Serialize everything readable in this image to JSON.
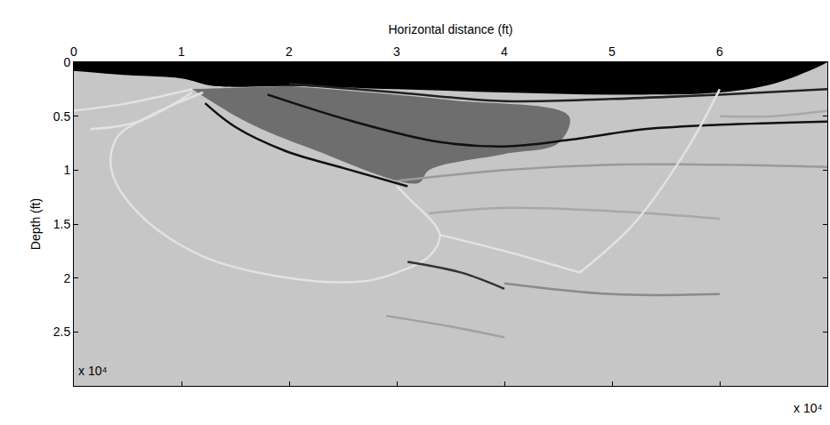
{
  "chart_data": {
    "type": "line",
    "x_label": "Horizontal distance (ft)",
    "y_label": "Depth (ft)",
    "x_exponent_label": "x 10⁴",
    "y_exponent_label": "x 10⁴",
    "xlim": [
      0,
      7.0
    ],
    "ylim": [
      0,
      3.0
    ],
    "xticks": [
      0,
      1,
      2,
      3,
      4,
      5,
      6
    ],
    "yticks": [
      0,
      0.5,
      1,
      1.5,
      2,
      2.5
    ],
    "grid": false,
    "series": [
      {
        "type": "polygon",
        "color": "#6e6e6e",
        "x": [
          1.1,
          1.6,
          2.2,
          3.2,
          3.3,
          4.0,
          4.5,
          4.6,
          3.5,
          2.0
        ],
        "values": [
          0.25,
          0.55,
          0.8,
          1.12,
          1.0,
          0.85,
          0.75,
          0.5,
          0.35,
          0.22
        ]
      },
      {
        "type": "area",
        "color": "#000000",
        "x": [
          0,
          0.5,
          1.0,
          1.3,
          2.0,
          3.0,
          4.0,
          5.0,
          6.0,
          6.5,
          6.9,
          7.0
        ],
        "values": [
          0.08,
          0.12,
          0.15,
          0.22,
          0.22,
          0.25,
          0.28,
          0.3,
          0.28,
          0.2,
          0.05,
          0
        ]
      },
      {
        "type": "line",
        "color": "#111111",
        "x": [
          1.22,
          1.5,
          1.96,
          2.5,
          3.1
        ],
        "values": [
          0.38,
          0.6,
          0.82,
          0.98,
          1.15
        ]
      },
      {
        "type": "line",
        "color": "#111111",
        "x": [
          1.8,
          2.6,
          3.4,
          4.0,
          4.6,
          5.3,
          6.0,
          7.0
        ],
        "values": [
          0.3,
          0.55,
          0.74,
          0.78,
          0.72,
          0.62,
          0.58,
          0.55
        ]
      },
      {
        "type": "line",
        "color": "#222222",
        "x": [
          2.0,
          3.0,
          4.0,
          5.0,
          6.0,
          7.0
        ],
        "values": [
          0.2,
          0.28,
          0.36,
          0.34,
          0.3,
          0.25
        ]
      },
      {
        "type": "line",
        "color": "#9a9a9a",
        "x": [
          3.0,
          4.0,
          5.0,
          6.0,
          7.0
        ],
        "values": [
          1.1,
          1.0,
          0.95,
          0.95,
          0.97
        ]
      },
      {
        "type": "line",
        "color": "#a8a8a8",
        "x": [
          3.3,
          4.0,
          5.0,
          6.0
        ],
        "values": [
          1.4,
          1.35,
          1.38,
          1.45
        ]
      },
      {
        "type": "line",
        "color": "#e2e2e2",
        "x": [
          1.2,
          0.7,
          0.4,
          0.35,
          0.6,
          1.2,
          2.0,
          2.7,
          3.0,
          3.3,
          3.4,
          3.1,
          3.0
        ],
        "values": [
          0.28,
          0.5,
          0.7,
          1.0,
          1.4,
          1.8,
          2.0,
          2.03,
          1.95,
          1.8,
          1.6,
          1.25,
          1.15
        ]
      },
      {
        "type": "line",
        "color": "#e2e2e2",
        "x": [
          0,
          0.5,
          1.1
        ],
        "values": [
          0.45,
          0.38,
          0.25
        ]
      },
      {
        "type": "line",
        "color": "#e2e2e2",
        "x": [
          0.15,
          0.6,
          1.1
        ],
        "values": [
          0.62,
          0.55,
          0.28
        ]
      },
      {
        "type": "line",
        "color": "#e2e2e2",
        "x": [
          6.0,
          5.7,
          5.2,
          4.7
        ],
        "values": [
          0.25,
          0.8,
          1.5,
          1.95
        ]
      },
      {
        "type": "line",
        "color": "#e2e2e2",
        "x": [
          3.4,
          4.0,
          4.7
        ],
        "values": [
          1.6,
          1.75,
          1.95
        ]
      },
      {
        "type": "line",
        "color": "#333333",
        "x": [
          3.1,
          3.6,
          4.0
        ],
        "values": [
          1.85,
          1.95,
          2.1
        ]
      },
      {
        "type": "line",
        "color": "#8a8a8a",
        "x": [
          4.0,
          5.0,
          6.0
        ],
        "values": [
          2.05,
          2.15,
          2.15
        ]
      },
      {
        "type": "line",
        "color": "#a0a0a0",
        "x": [
          2.9,
          3.5,
          4.0
        ],
        "values": [
          2.35,
          2.45,
          2.55
        ]
      },
      {
        "type": "line",
        "color": "#a8a8a8",
        "x": [
          6.0,
          6.5,
          7.0
        ],
        "values": [
          0.5,
          0.5,
          0.45
        ]
      }
    ]
  }
}
